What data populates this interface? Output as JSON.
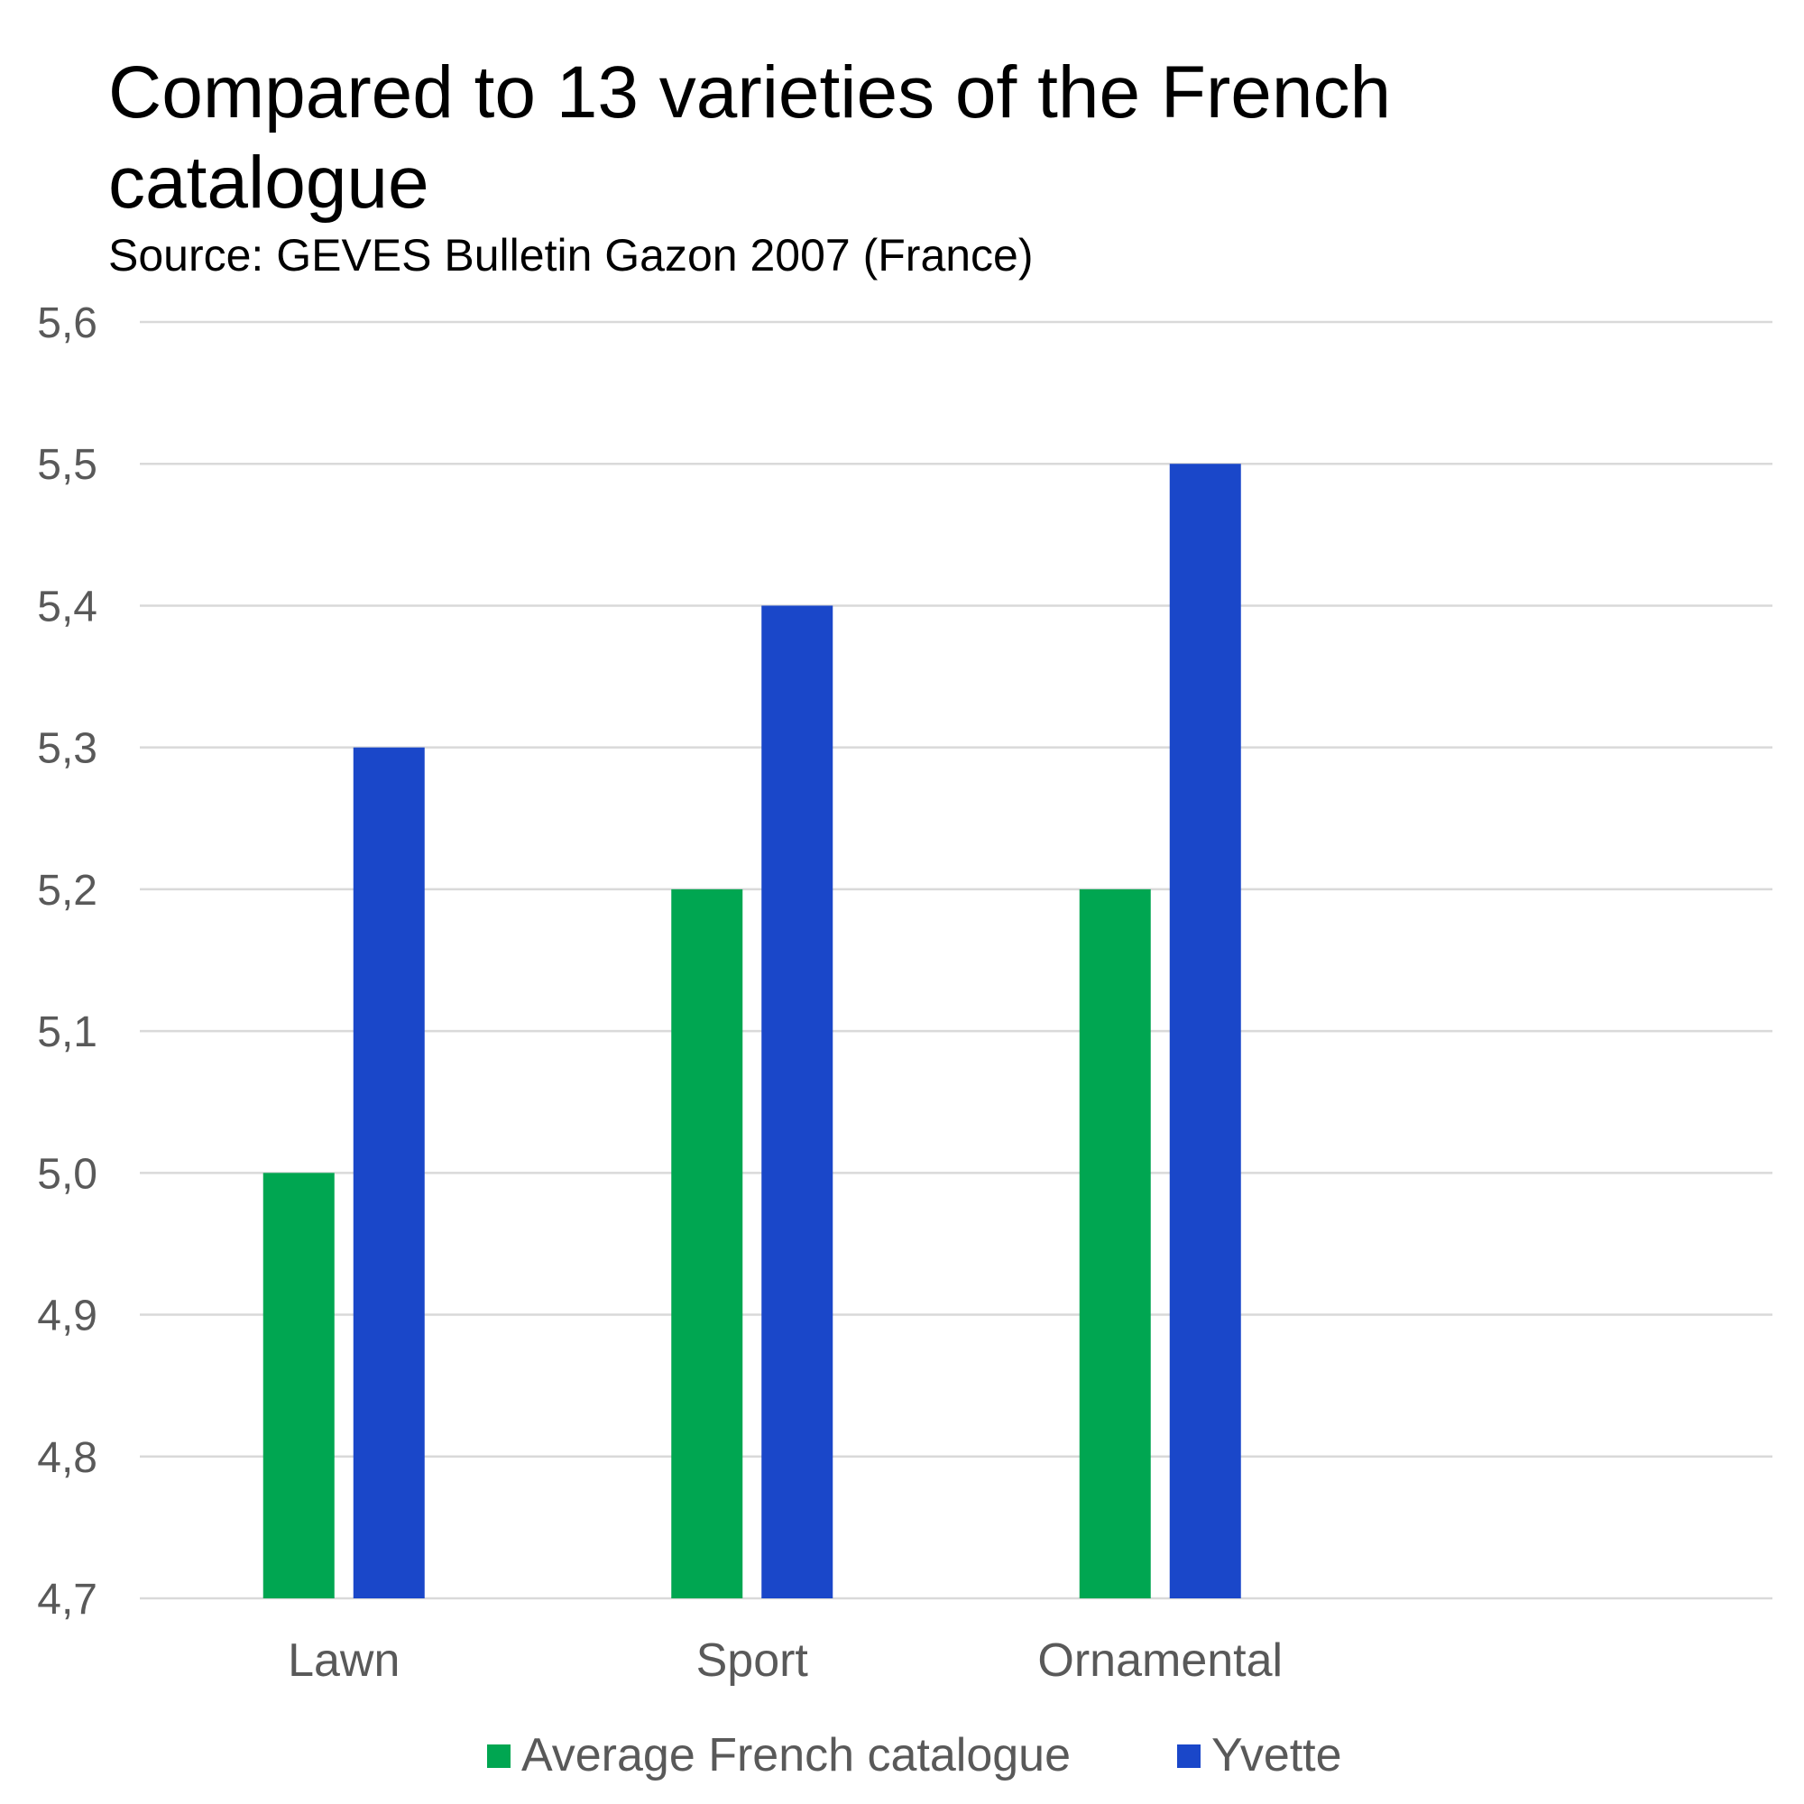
{
  "chart_data": {
    "type": "bar",
    "title_lines": [
      "Compared to 13 varieties of the French",
      "catalogue"
    ],
    "subtitle": "Source: GEVES Bulletin Gazon 2007 (France)",
    "categories": [
      "Lawn",
      "Sport",
      "Ornamental",
      ""
    ],
    "series": [
      {
        "name": "Average French catalogue",
        "color": "#00a651",
        "values": [
          5.0,
          5.2,
          5.2,
          null
        ]
      },
      {
        "name": "Yvette",
        "color": "#1a47c9",
        "values": [
          5.3,
          5.4,
          5.5,
          null
        ]
      }
    ],
    "ylim": [
      4.7,
      5.6
    ],
    "yticks": [
      "4,7",
      "4,8",
      "4,9",
      "5,0",
      "5,1",
      "5,2",
      "5,3",
      "5,4",
      "5,5",
      "5,6"
    ],
    "grid": true,
    "legend_position": "bottom",
    "xlabel": "",
    "ylabel": ""
  }
}
